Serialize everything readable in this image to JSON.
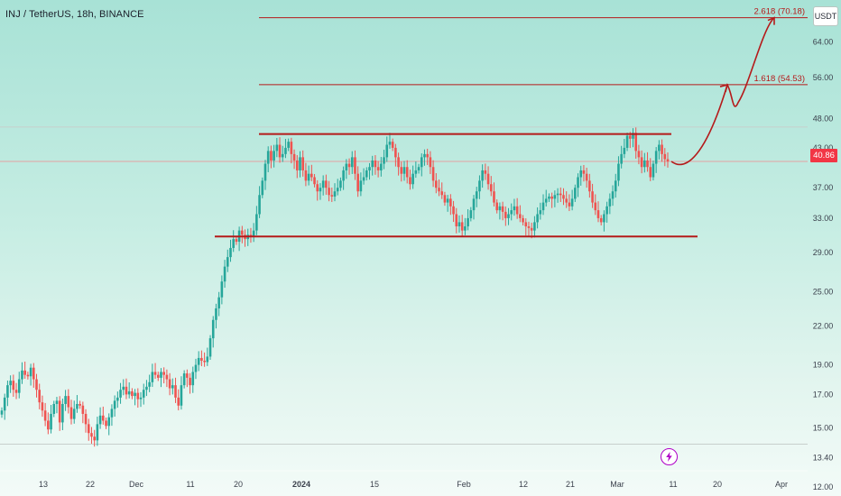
{
  "header": {
    "symbol": "INJ / TetherUS, 18h, BINANCE"
  },
  "price_axis": {
    "unit_label": "USDT",
    "current_price_label": "40.86"
  },
  "colors": {
    "bull": "#26a69a",
    "bear": "#ef5350",
    "annotation": "#b51a1a",
    "price_tag": "#f23645",
    "axis_text": "#3a3f4b"
  },
  "icons": {
    "flash": "lightning-icon"
  },
  "chart_data": {
    "type": "candlestick",
    "scale": "log",
    "ylim": [
      11.6,
      75
    ],
    "y_ticks": [
      "64.00",
      "56.00",
      "48.00",
      "43.00",
      "37.00",
      "33.00",
      "29.00",
      "25.00",
      "22.00",
      "19.00",
      "17.00",
      "15.00",
      "13.40",
      "12.00"
    ],
    "x_ticks": [
      "13",
      "22",
      "Dec",
      "11",
      "20",
      "2024",
      "15",
      "Feb",
      "12",
      "21",
      "Mar",
      "11",
      "20",
      "Apr"
    ],
    "levels": [
      {
        "label": "2.618 (70.18)",
        "value": 70.18
      },
      {
        "label": "1.618 (54.53)",
        "value": 54.53
      }
    ],
    "range_box": {
      "upper": 45.3,
      "lower": 30.8
    },
    "reference_lines": [
      46.5,
      40.86,
      14.1
    ],
    "projected_path": [
      40.86,
      42.5,
      54.5,
      51.0,
      70.18
    ],
    "last_price": 40.86,
    "series": [
      {
        "name": "INJ/USDT",
        "close": [
          16.0,
          16.8,
          17.6,
          17.9,
          17.3,
          17.1,
          18.0,
          18.6,
          18.3,
          18.2,
          18.8,
          18.0,
          17.3,
          16.5,
          16.0,
          15.4,
          14.9,
          15.8,
          16.4,
          16.6,
          15.3,
          16.4,
          16.9,
          16.2,
          15.5,
          16.1,
          16.4,
          16.3,
          15.8,
          15.2,
          14.7,
          14.5,
          14.3,
          15.2,
          15.7,
          15.4,
          15.1,
          15.6,
          16.1,
          16.6,
          16.8,
          17.3,
          17.5,
          17.0,
          17.2,
          16.9,
          17.1,
          16.7,
          16.8,
          17.3,
          17.5,
          17.8,
          18.5,
          18.3,
          18.1,
          18.5,
          18.3,
          18.0,
          17.4,
          17.6,
          16.8,
          16.3,
          17.6,
          18.4,
          18.1,
          17.6,
          18.5,
          19.0,
          19.5,
          19.3,
          19.2,
          19.6,
          21.0,
          22.5,
          23.5,
          24.5,
          26.0,
          27.5,
          28.5,
          29.5,
          30.5,
          30.2,
          31.5,
          31.0,
          30.5,
          31.0,
          30.8,
          31.5,
          33.5,
          36.0,
          38.0,
          40.5,
          42.5,
          41.0,
          42.5,
          43.5,
          41.5,
          42.0,
          43.0,
          44.0,
          42.0,
          41.0,
          39.5,
          41.5,
          39.5,
          38.0,
          39.0,
          38.5,
          37.5,
          36.5,
          37.0,
          38.0,
          37.0,
          36.0,
          35.8,
          36.5,
          37.0,
          38.0,
          39.5,
          40.5,
          40.0,
          41.5,
          39.0,
          36.5,
          38.0,
          38.5,
          39.5,
          40.0,
          41.0,
          40.0,
          39.5,
          40.5,
          41.5,
          43.5,
          44.0,
          43.0,
          41.5,
          40.0,
          39.0,
          40.0,
          38.5,
          37.5,
          39.0,
          39.5,
          40.0,
          41.5,
          42.0,
          41.5,
          40.0,
          38.0,
          37.0,
          36.5,
          36.0,
          35.0,
          35.5,
          34.5,
          33.5,
          32.0,
          32.5,
          31.5,
          32.0,
          33.0,
          34.0,
          35.5,
          36.5,
          38.0,
          39.5,
          39.0,
          37.5,
          36.5,
          35.0,
          34.0,
          34.5,
          33.8,
          33.0,
          33.5,
          34.0,
          34.5,
          33.5,
          33.0,
          32.5,
          32.0,
          31.8,
          31.5,
          32.5,
          33.5,
          34.0,
          35.0,
          35.5,
          35.8,
          35.5,
          36.0,
          36.2,
          36.0,
          35.5,
          35.0,
          34.5,
          35.5,
          37.0,
          38.5,
          39.5,
          39.0,
          38.0,
          36.5,
          35.0,
          34.0,
          33.0,
          32.5,
          33.5,
          34.5,
          35.5,
          36.5,
          38.0,
          40.5,
          42.0,
          43.0,
          45.0,
          44.5,
          45.5,
          42.5,
          41.5,
          40.0,
          41.0,
          40.0,
          38.5,
          40.5,
          42.5,
          43.5,
          42.0,
          41.2,
          40.86
        ]
      }
    ]
  }
}
